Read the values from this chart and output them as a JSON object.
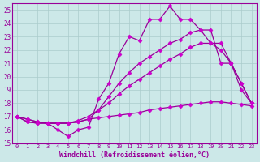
{
  "background_color": "#cce8e8",
  "grid_color": "#aacccc",
  "line_color": "#990099",
  "marker_color": "#cc00cc",
  "xlabel": "Windchill (Refroidissement éolien,°C)",
  "xlim": [
    -0.5,
    23.5
  ],
  "ylim": [
    15,
    25.5
  ],
  "yticks": [
    15,
    16,
    17,
    18,
    19,
    20,
    21,
    22,
    23,
    24,
    25
  ],
  "xticks": [
    0,
    1,
    2,
    3,
    4,
    5,
    6,
    7,
    8,
    9,
    10,
    11,
    12,
    13,
    14,
    15,
    16,
    17,
    18,
    19,
    20,
    21,
    22,
    23
  ],
  "series1_x": [
    0,
    1,
    2,
    3,
    4,
    5,
    6,
    7,
    8,
    9,
    10,
    11,
    12,
    13,
    14,
    15,
    16,
    17,
    18,
    19,
    20,
    21,
    22,
    23
  ],
  "series1_y": [
    17.0,
    16.6,
    16.5,
    16.5,
    16.0,
    15.5,
    16.0,
    16.2,
    18.3,
    19.5,
    21.7,
    23.0,
    22.7,
    24.3,
    24.3,
    25.3,
    24.3,
    24.3,
    23.5,
    23.5,
    21.0,
    21.0,
    19.0,
    18.0
  ],
  "series2_x": [
    0,
    1,
    2,
    3,
    4,
    5,
    6,
    7,
    8,
    9,
    10,
    11,
    12,
    13,
    14,
    15,
    16,
    17,
    18,
    19,
    20,
    21,
    22,
    23
  ],
  "series2_y": [
    17.0,
    16.8,
    16.6,
    16.5,
    16.5,
    16.5,
    16.6,
    16.8,
    17.5,
    18.5,
    19.5,
    20.3,
    21.0,
    21.5,
    22.0,
    22.5,
    22.8,
    23.3,
    23.5,
    22.5,
    22.5,
    21.0,
    19.5,
    18.0
  ],
  "series3_x": [
    0,
    1,
    2,
    3,
    4,
    5,
    6,
    7,
    8,
    9,
    10,
    11,
    12,
    13,
    14,
    15,
    16,
    17,
    18,
    19,
    20,
    21,
    22,
    23
  ],
  "series3_y": [
    17.0,
    16.8,
    16.6,
    16.5,
    16.5,
    16.5,
    16.7,
    17.0,
    17.5,
    18.0,
    18.7,
    19.3,
    19.8,
    20.3,
    20.8,
    21.3,
    21.7,
    22.2,
    22.5,
    22.5,
    22.0,
    21.0,
    19.5,
    18.0
  ],
  "series4_x": [
    0,
    1,
    2,
    3,
    4,
    5,
    6,
    7,
    8,
    9,
    10,
    11,
    12,
    13,
    14,
    15,
    16,
    17,
    18,
    19,
    20,
    21,
    22,
    23
  ],
  "series4_y": [
    17.0,
    16.6,
    16.5,
    16.5,
    16.5,
    16.5,
    16.6,
    16.8,
    16.9,
    17.0,
    17.1,
    17.2,
    17.3,
    17.5,
    17.6,
    17.7,
    17.8,
    17.9,
    18.0,
    18.1,
    18.1,
    18.0,
    17.9,
    17.8
  ]
}
